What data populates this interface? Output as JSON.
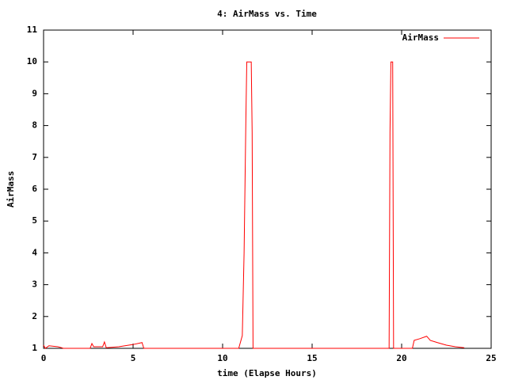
{
  "chart_data": {
    "type": "line",
    "title": "4: AirMass vs. Time",
    "xlabel": "time (Elapse Hours)",
    "ylabel": "AirMass",
    "x": [
      0,
      0.1,
      0.3,
      0.8,
      1.0,
      1.1,
      2.6,
      2.7,
      2.8,
      3.3,
      3.4,
      3.5,
      4.2,
      5.0,
      5.5,
      5.6,
      10.9,
      11.0,
      11.1,
      11.2,
      11.3,
      11.35,
      11.6,
      11.65,
      11.7,
      19.3,
      19.35,
      19.4,
      19.5,
      19.55,
      20.6,
      20.7,
      21.0,
      21.4,
      21.6,
      22.0,
      22.5,
      23.0,
      23.5
    ],
    "series": [
      {
        "name": "AirMass",
        "color": "#ff0000",
        "values": [
          1.1,
          1.0,
          1.08,
          1.05,
          1.02,
          1.0,
          1.0,
          1.15,
          1.05,
          1.05,
          1.2,
          1.02,
          1.05,
          1.12,
          1.18,
          1.0,
          1.0,
          1.2,
          1.4,
          4.0,
          8.2,
          10,
          10,
          7.8,
          1.0,
          1.0,
          7.8,
          10,
          10,
          1.0,
          1.0,
          1.25,
          1.3,
          1.38,
          1.25,
          1.18,
          1.1,
          1.05,
          1.02
        ]
      }
    ],
    "xlim": [
      0,
      25
    ],
    "xticks": [
      0,
      5,
      10,
      15,
      20,
      25
    ],
    "ylim": [
      1,
      11
    ],
    "yticks": [
      1,
      2,
      3,
      4,
      5,
      6,
      7,
      8,
      9,
      10,
      11
    ],
    "grid": false,
    "legend": "top-right"
  }
}
